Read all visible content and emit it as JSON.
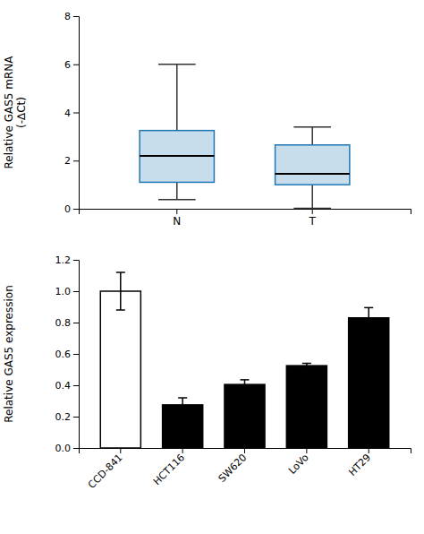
{
  "chart_data": [
    {
      "type": "box",
      "categories": [
        "N",
        "T"
      ],
      "values": [
        {
          "whislo": 0.38,
          "q1": 1.1,
          "med": 2.2,
          "q3": 3.25,
          "whishi": 6.0
        },
        {
          "whislo": 0.02,
          "q1": 1.0,
          "med": 1.45,
          "q3": 2.65,
          "whishi": 3.4
        }
      ],
      "y_label": "Relative GAS5 mRNA\n(-∆Ct)",
      "ylim": [
        0,
        8
      ],
      "yticks": [
        0,
        2,
        4,
        6,
        8
      ],
      "grid": false
    },
    {
      "type": "bar",
      "categories": [
        "CCD-841",
        "HCT116",
        "SW620",
        "LoVo",
        "HT29"
      ],
      "values": [
        1.0,
        0.275,
        0.405,
        0.525,
        0.83
      ],
      "errors": [
        0.12,
        0.045,
        0.03,
        0.015,
        0.065
      ],
      "colors": [
        "#ffffff",
        "#000000",
        "#000000",
        "#000000",
        "#000000"
      ],
      "y_label": "Relative GAS5 expression",
      "ylim": [
        0,
        1.2
      ],
      "yticks": [
        {
          "value": 0.0,
          "label": "0.0"
        },
        0.2,
        0.4,
        0.6,
        0.8,
        {
          "value": 1.0,
          "label": "1.0"
        },
        1.2
      ],
      "grid": false
    }
  ]
}
